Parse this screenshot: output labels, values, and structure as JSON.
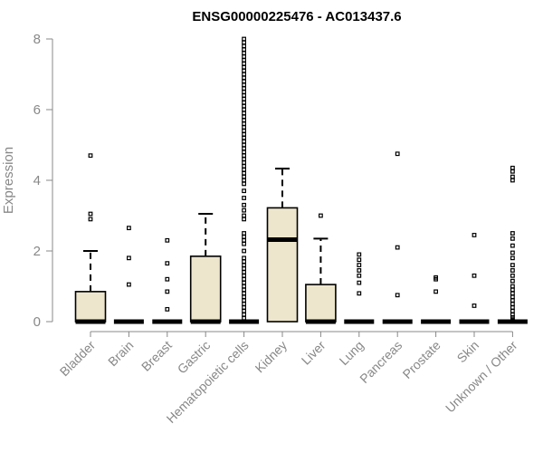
{
  "chart_data": {
    "type": "boxplot",
    "title": "ENSG00000225476 - AC013437.6",
    "ylabel": "Expression",
    "xlabel": "",
    "ylim": [
      0,
      8
    ],
    "yticks": [
      0,
      2,
      4,
      6,
      8
    ],
    "grid": false,
    "box_fill": "#ede6cc",
    "box_stroke": "#000000",
    "categories": [
      "Bladder",
      "Brain",
      "Breast",
      "Gastric",
      "Hematopoietic cells",
      "Kidney",
      "Liver",
      "Lung",
      "Pancreas",
      "Prostate",
      "Skin",
      "Unknown / Other"
    ],
    "boxes": [
      {
        "category": "Bladder",
        "whisker_low": 0,
        "q1": 0,
        "median": 0,
        "q3": 0.85,
        "whisker_high": 2.0,
        "outliers": [
          4.7,
          3.05,
          2.9
        ]
      },
      {
        "category": "Brain",
        "whisker_low": 0,
        "q1": 0,
        "median": 0,
        "q3": 0,
        "whisker_high": 0,
        "outliers": [
          2.65,
          1.8,
          1.05
        ]
      },
      {
        "category": "Breast",
        "whisker_low": 0,
        "q1": 0,
        "median": 0,
        "q3": 0,
        "whisker_high": 0,
        "outliers": [
          2.3,
          1.65,
          1.2,
          0.85,
          0.35
        ]
      },
      {
        "category": "Gastric",
        "whisker_low": 0,
        "q1": 0,
        "median": 0,
        "q3": 1.85,
        "whisker_high": 3.05,
        "outliers": []
      },
      {
        "category": "Hematopoietic cells",
        "whisker_low": 0,
        "q1": 0,
        "median": 0,
        "q3": 0,
        "whisker_high": 0,
        "outliers": [
          8.0,
          7.9,
          7.8,
          7.7,
          7.6,
          7.5,
          7.4,
          7.3,
          7.2,
          7.1,
          7.0,
          6.9,
          6.8,
          6.7,
          6.6,
          6.5,
          6.4,
          6.3,
          6.2,
          6.1,
          6.0,
          5.9,
          5.8,
          5.7,
          5.6,
          5.5,
          5.4,
          5.3,
          5.2,
          5.1,
          5.0,
          4.9,
          4.8,
          4.7,
          4.6,
          4.5,
          4.4,
          4.3,
          4.2,
          4.1,
          4.0,
          3.9,
          3.7,
          3.5,
          3.3,
          3.15,
          3.0,
          2.9,
          2.5,
          2.4,
          2.3,
          2.2,
          2.0,
          1.8,
          1.7,
          1.6,
          1.5,
          1.4,
          1.3,
          1.2,
          1.1,
          1.0,
          0.9,
          0.8,
          0.7,
          0.6,
          0.5,
          0.4,
          0.3,
          0.2,
          0.1
        ]
      },
      {
        "category": "Kidney",
        "whisker_low": 0,
        "q1": 0,
        "median": 2.32,
        "q3": 3.22,
        "whisker_high": 4.33,
        "outliers": []
      },
      {
        "category": "Liver",
        "whisker_low": 0,
        "q1": 0,
        "median": 0,
        "q3": 1.05,
        "whisker_high": 2.35,
        "outliers": [
          3.0
        ]
      },
      {
        "category": "Lung",
        "whisker_low": 0,
        "q1": 0,
        "median": 0,
        "q3": 0,
        "whisker_high": 0,
        "outliers": [
          1.9,
          1.75,
          1.6,
          1.45,
          1.3,
          1.1,
          0.8
        ]
      },
      {
        "category": "Pancreas",
        "whisker_low": 0,
        "q1": 0,
        "median": 0,
        "q3": 0,
        "whisker_high": 0,
        "outliers": [
          4.75,
          2.1,
          0.75
        ]
      },
      {
        "category": "Prostate",
        "whisker_low": 0,
        "q1": 0,
        "median": 0,
        "q3": 0,
        "whisker_high": 0,
        "outliers": [
          1.25,
          1.2,
          0.85
        ]
      },
      {
        "category": "Skin",
        "whisker_low": 0,
        "q1": 0,
        "median": 0,
        "q3": 0,
        "whisker_high": 0,
        "outliers": [
          2.45,
          1.3,
          0.45
        ]
      },
      {
        "category": "Unknown / Other",
        "whisker_low": 0,
        "q1": 0,
        "median": 0,
        "q3": 0,
        "whisker_high": 0,
        "outliers": [
          4.35,
          4.25,
          4.1,
          4.0,
          2.5,
          2.35,
          2.15,
          1.95,
          1.8,
          1.6,
          1.45,
          1.3,
          1.15,
          1.0,
          0.9,
          0.8,
          0.7,
          0.6,
          0.5,
          0.4,
          0.3,
          0.2,
          0.12,
          0.06
        ]
      }
    ]
  }
}
